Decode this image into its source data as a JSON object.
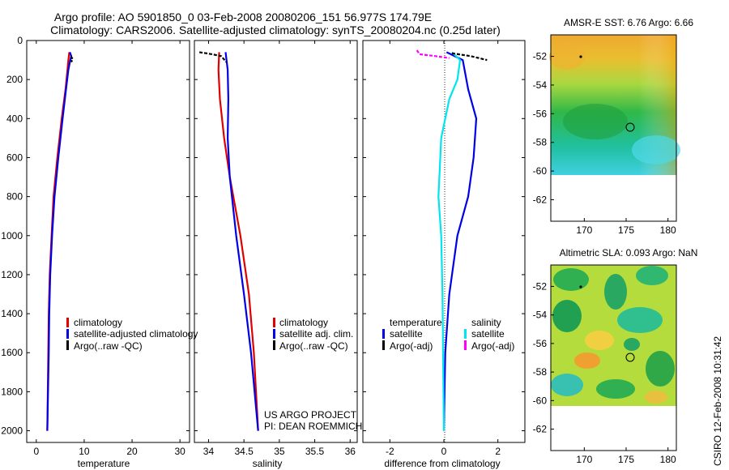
{
  "title": {
    "line1": "Argo profile: AO 5901850_0 03-Feb-2008 20080206_151 56.977S 174.79E",
    "line2": "Climatology: CARS2006. Satellite-adjusted climatology: synTS_20080204.nc (0.25d later)"
  },
  "footer": {
    "project": "US ARGO PROJECT",
    "pi": "PI: DEAN ROEMMICH",
    "stamp": "CSIRO 12-Feb-2008 10:31:42"
  },
  "colors": {
    "climatology": "#e00000",
    "satellite": "#0000e6",
    "argo": "#000000",
    "diff_temp_sat": "#0000e6",
    "diff_sal_sat": "#00e5ee",
    "diff_sal_argo": "#ff00ff"
  },
  "chart_data": [
    {
      "type": "line",
      "xlabel": "temperature",
      "ylim": [
        2060,
        0
      ],
      "xlim": [
        -2,
        32
      ],
      "xticks": [
        0,
        10,
        20,
        30
      ],
      "yticks": [
        0,
        200,
        400,
        600,
        800,
        1000,
        1200,
        1400,
        1600,
        1800,
        2000
      ],
      "legend": [
        "climatology",
        "satellite-adjusted climatology",
        "Argo(..raw -QC)"
      ],
      "series": [
        {
          "name": "climatology",
          "color": "#e00000",
          "x": [
            6.9,
            6.7,
            6.5,
            6.1,
            5.3,
            4.4,
            3.6,
            3.2,
            2.8,
            2.6,
            2.5,
            2.3
          ],
          "y": [
            60,
            100,
            150,
            250,
            400,
            600,
            800,
            1000,
            1200,
            1400,
            1600,
            2000
          ]
        },
        {
          "name": "satellite-adjusted climatology",
          "color": "#0000e6",
          "x": [
            7.0,
            7.3,
            7.1,
            6.7,
            6.2,
            5.5,
            4.6,
            3.8,
            3.3,
            2.9,
            2.7,
            2.6,
            2.3
          ],
          "y": [
            60,
            80,
            100,
            150,
            250,
            400,
            600,
            800,
            1000,
            1200,
            1400,
            1600,
            2000
          ]
        },
        {
          "name": "Argo(..raw -QC)",
          "color": "#000000",
          "x": [
            7.2,
            7.6,
            7.3
          ],
          "y": [
            80,
            95,
            110
          ]
        }
      ]
    },
    {
      "type": "line",
      "xlabel": "salinity",
      "ylim": [
        2060,
        0
      ],
      "xlim": [
        33.8,
        36.1
      ],
      "xticks": [
        34,
        34.5,
        35,
        35.5,
        36
      ],
      "legend": [
        "climatology",
        "satellite adj. clim.",
        "Argo(..raw -QC)"
      ],
      "series": [
        {
          "name": "climatology",
          "color": "#e00000",
          "x": [
            34.15,
            34.14,
            34.16,
            34.22,
            34.3,
            34.45,
            34.57,
            34.64,
            34.7
          ],
          "y": [
            60,
            150,
            300,
            500,
            700,
            1000,
            1300,
            1600,
            2000
          ]
        },
        {
          "name": "satellite adj. clim.",
          "color": "#0000e6",
          "x": [
            34.24,
            34.27,
            34.28,
            34.27,
            34.3,
            34.39,
            34.5,
            34.6,
            34.7
          ],
          "y": [
            60,
            150,
            300,
            500,
            700,
            1000,
            1300,
            1600,
            2000
          ]
        },
        {
          "name": "Argo(..raw -QC)",
          "color": "#000000",
          "x": [
            33.87,
            34.05,
            34.18,
            34.25
          ],
          "y": [
            60,
            70,
            80,
            110
          ]
        }
      ]
    },
    {
      "type": "line",
      "xlabel": "difference from climatology",
      "ylim": [
        2060,
        0
      ],
      "xlim": [
        -3,
        3
      ],
      "xticks": [
        -2,
        0,
        2
      ],
      "legend": {
        "temperature": [
          "satellite",
          "Argo(-adj)"
        ],
        "salinity": [
          "satellite",
          "Argo(-adj)"
        ]
      },
      "series": [
        {
          "name": "temperature satellite",
          "color": "#0000e6",
          "x": [
            0.1,
            0.7,
            0.9,
            1.2,
            1.1,
            0.9,
            0.5,
            0.2,
            0.05,
            0.0
          ],
          "y": [
            60,
            100,
            250,
            400,
            600,
            800,
            1000,
            1300,
            1600,
            2000
          ]
        },
        {
          "name": "salinity satellite",
          "color": "#00e5ee",
          "x": [
            0.3,
            0.6,
            0.5,
            0.2,
            -0.1,
            -0.2,
            -0.1,
            -0.05,
            -0.03,
            0.0
          ],
          "y": [
            60,
            100,
            200,
            300,
            500,
            800,
            1000,
            1300,
            1600,
            2000
          ]
        },
        {
          "name": "temperature Argo(-adj)",
          "color": "#000000",
          "x": [
            0.3,
            1.0,
            1.6
          ],
          "y": [
            65,
            80,
            100
          ]
        },
        {
          "name": "salinity Argo(-adj)",
          "color": "#ff00ff",
          "x": [
            -1.0,
            -0.9,
            -0.3,
            0.2
          ],
          "y": [
            50,
            70,
            80,
            90
          ]
        }
      ]
    },
    {
      "type": "heatmap",
      "title": "AMSR-E SST: 6.76 Argo: 6.66",
      "xlim": [
        166,
        181
      ],
      "ylim": [
        -63.5,
        -50.5
      ],
      "xticks": [
        170,
        175,
        180
      ],
      "yticks": [
        -52,
        -54,
        -56,
        -58,
        -60,
        -62
      ],
      "markers": {
        "argo_dot": [
          169,
          -52.5
        ],
        "circle": [
          174.79,
          -56.977
        ]
      }
    },
    {
      "type": "heatmap",
      "title": "Altimetric SLA: 0.093 Argo: NaN",
      "xlim": [
        166,
        181
      ],
      "ylim": [
        -63.5,
        -50.5
      ],
      "xticks": [
        170,
        175,
        180
      ],
      "yticks": [
        -52,
        -54,
        -56,
        -58,
        -60,
        -62
      ],
      "markers": {
        "argo_dot": [
          169,
          -52.5
        ],
        "circle": [
          174.79,
          -56.977
        ]
      }
    }
  ]
}
